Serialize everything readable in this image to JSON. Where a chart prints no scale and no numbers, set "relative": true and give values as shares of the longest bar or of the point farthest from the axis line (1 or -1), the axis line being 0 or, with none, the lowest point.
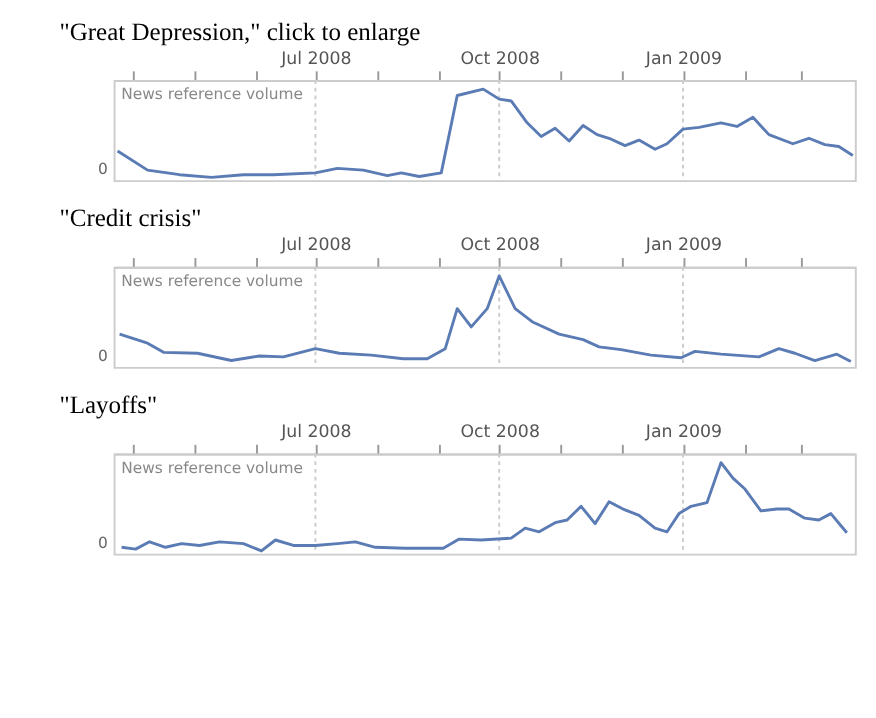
{
  "chart_data": [
    {
      "type": "line",
      "title": "\"Great Depression,\" click to enlarge",
      "ylabel": "News reference volume",
      "annotations": [
        "0"
      ],
      "relative": true,
      "grid": "x",
      "xlim": [
        "2008-03-22",
        "2009-03-28"
      ],
      "xticks": [
        {
          "value": "2008-04-01",
          "label": null
        },
        {
          "value": "2008-05-01",
          "label": null
        },
        {
          "value": "2008-06-01",
          "label": null
        },
        {
          "value": "2008-07-01",
          "label": "Jul 2008"
        },
        {
          "value": "2008-08-01",
          "label": null
        },
        {
          "value": "2008-09-01",
          "label": null
        },
        {
          "value": "2008-10-01",
          "label": "Oct 2008"
        },
        {
          "value": "2008-11-01",
          "label": null
        },
        {
          "value": "2008-12-01",
          "label": null
        },
        {
          "value": "2009-01-01",
          "label": "Jan 2009"
        },
        {
          "value": "2009-02-01",
          "label": null
        },
        {
          "value": "2009-03-01",
          "label": null
        }
      ],
      "series": [
        {
          "color": "#5b7bb5",
          "x": [
            "2008-03-24",
            "2008-04-08",
            "2008-04-24",
            "2008-05-10",
            "2008-05-26",
            "2008-06-10",
            "2008-07-01",
            "2008-07-12",
            "2008-07-25",
            "2008-08-06",
            "2008-08-13",
            "2008-08-22",
            "2008-09-02",
            "2008-09-10",
            "2008-09-23",
            "2008-10-01",
            "2008-10-07",
            "2008-10-15",
            "2008-10-22",
            "2008-10-29",
            "2008-11-05",
            "2008-11-12",
            "2008-11-19",
            "2008-11-25",
            "2008-12-03",
            "2008-12-10",
            "2008-12-18",
            "2008-12-24",
            "2009-01-01",
            "2009-01-09",
            "2009-01-20",
            "2009-01-28",
            "2009-02-05",
            "2009-02-13",
            "2009-02-25",
            "2009-03-05",
            "2009-03-13",
            "2009-03-20",
            "2009-03-27"
          ],
          "values": [
            0.32,
            0.11,
            0.06,
            0.03,
            0.06,
            0.06,
            0.08,
            0.13,
            0.11,
            0.05,
            0.08,
            0.04,
            0.08,
            0.93,
            1,
            0.89,
            0.87,
            0.63,
            0.48,
            0.57,
            0.43,
            0.6,
            0.5,
            0.46,
            0.38,
            0.44,
            0.34,
            0.4,
            0.56,
            0.58,
            0.63,
            0.59,
            0.69,
            0.5,
            0.4,
            0.46,
            0.39,
            0.37,
            0.27
          ]
        }
      ]
    },
    {
      "type": "line",
      "title": "\"Credit crisis\"",
      "ylabel": "News reference volume",
      "annotations": [
        "0"
      ],
      "relative": true,
      "grid": "x",
      "xlim": [
        "2008-03-22",
        "2009-03-28"
      ],
      "xticks": [
        {
          "value": "2008-04-01",
          "label": null
        },
        {
          "value": "2008-05-01",
          "label": null
        },
        {
          "value": "2008-06-01",
          "label": null
        },
        {
          "value": "2008-07-01",
          "label": "Jul 2008"
        },
        {
          "value": "2008-08-01",
          "label": null
        },
        {
          "value": "2008-09-01",
          "label": null
        },
        {
          "value": "2008-10-01",
          "label": "Oct 2008"
        },
        {
          "value": "2008-11-01",
          "label": null
        },
        {
          "value": "2008-12-01",
          "label": null
        },
        {
          "value": "2009-01-01",
          "label": "Jan 2009"
        },
        {
          "value": "2009-02-01",
          "label": null
        },
        {
          "value": "2009-03-01",
          "label": null
        }
      ],
      "series": [
        {
          "color": "#5b7bb5",
          "x": [
            "2008-03-25",
            "2008-04-08",
            "2008-04-16",
            "2008-05-03",
            "2008-05-20",
            "2008-06-03",
            "2008-06-15",
            "2008-07-01",
            "2008-07-13",
            "2008-07-29",
            "2008-08-14",
            "2008-08-26",
            "2008-09-04",
            "2008-09-10",
            "2008-09-17",
            "2008-09-25",
            "2008-10-01",
            "2008-10-09",
            "2008-10-18",
            "2008-10-31",
            "2008-11-12",
            "2008-11-20",
            "2008-12-01",
            "2008-12-16",
            "2008-12-31",
            "2009-01-07",
            "2009-01-20",
            "2009-02-08",
            "2009-02-18",
            "2009-02-26",
            "2009-03-08",
            "2009-03-19",
            "2009-03-26"
          ],
          "values": [
            0.36,
            0.26,
            0.16,
            0.15,
            0.07,
            0.12,
            0.11,
            0.2,
            0.15,
            0.13,
            0.09,
            0.09,
            0.2,
            0.64,
            0.44,
            0.64,
            1,
            0.64,
            0.49,
            0.36,
            0.3,
            0.22,
            0.19,
            0.13,
            0.1,
            0.17,
            0.14,
            0.11,
            0.2,
            0.15,
            0.07,
            0.14,
            0.06
          ]
        }
      ]
    },
    {
      "type": "line",
      "title": "\"Layoffs\"",
      "ylabel": "News reference volume",
      "annotations": [
        "0"
      ],
      "relative": true,
      "grid": "x",
      "xlim": [
        "2008-03-22",
        "2009-03-28"
      ],
      "xticks": [
        {
          "value": "2008-04-01",
          "label": null
        },
        {
          "value": "2008-05-01",
          "label": null
        },
        {
          "value": "2008-06-01",
          "label": null
        },
        {
          "value": "2008-07-01",
          "label": "Jul 2008"
        },
        {
          "value": "2008-08-01",
          "label": null
        },
        {
          "value": "2008-09-01",
          "label": null
        },
        {
          "value": "2008-10-01",
          "label": "Oct 2008"
        },
        {
          "value": "2008-11-01",
          "label": null
        },
        {
          "value": "2008-12-01",
          "label": null
        },
        {
          "value": "2009-01-01",
          "label": "Jan 2009"
        },
        {
          "value": "2009-02-01",
          "label": null
        },
        {
          "value": "2009-03-01",
          "label": null
        }
      ],
      "series": [
        {
          "color": "#5b7bb5",
          "x": [
            "2008-03-26",
            "2008-04-02",
            "2008-04-09",
            "2008-04-17",
            "2008-04-25",
            "2008-05-04",
            "2008-05-14",
            "2008-05-26",
            "2008-06-04",
            "2008-06-11",
            "2008-06-20",
            "2008-07-01",
            "2008-07-12",
            "2008-07-21",
            "2008-07-31",
            "2008-08-15",
            "2008-09-03",
            "2008-09-11",
            "2008-09-22",
            "2008-10-07",
            "2008-10-14",
            "2008-10-21",
            "2008-10-29",
            "2008-11-04",
            "2008-11-11",
            "2008-11-18",
            "2008-11-25",
            "2008-12-02",
            "2008-12-10",
            "2008-12-18",
            "2008-12-24",
            "2008-12-30",
            "2009-01-05",
            "2009-01-13",
            "2009-01-20",
            "2009-01-26",
            "2009-02-01",
            "2009-02-09",
            "2009-02-17",
            "2009-02-23",
            "2009-03-03",
            "2009-03-10",
            "2009-03-16",
            "2009-03-24"
          ],
          "values": [
            0.07,
            0.05,
            0.13,
            0.07,
            0.11,
            0.09,
            0.13,
            0.11,
            0.03,
            0.15,
            0.09,
            0.09,
            0.11,
            0.13,
            0.07,
            0.06,
            0.06,
            0.16,
            0.15,
            0.17,
            0.28,
            0.24,
            0.34,
            0.37,
            0.52,
            0.33,
            0.57,
            0.49,
            0.42,
            0.28,
            0.24,
            0.44,
            0.52,
            0.56,
            1,
            0.83,
            0.71,
            0.47,
            0.49,
            0.49,
            0.39,
            0.37,
            0.44,
            0.23
          ]
        }
      ]
    }
  ]
}
